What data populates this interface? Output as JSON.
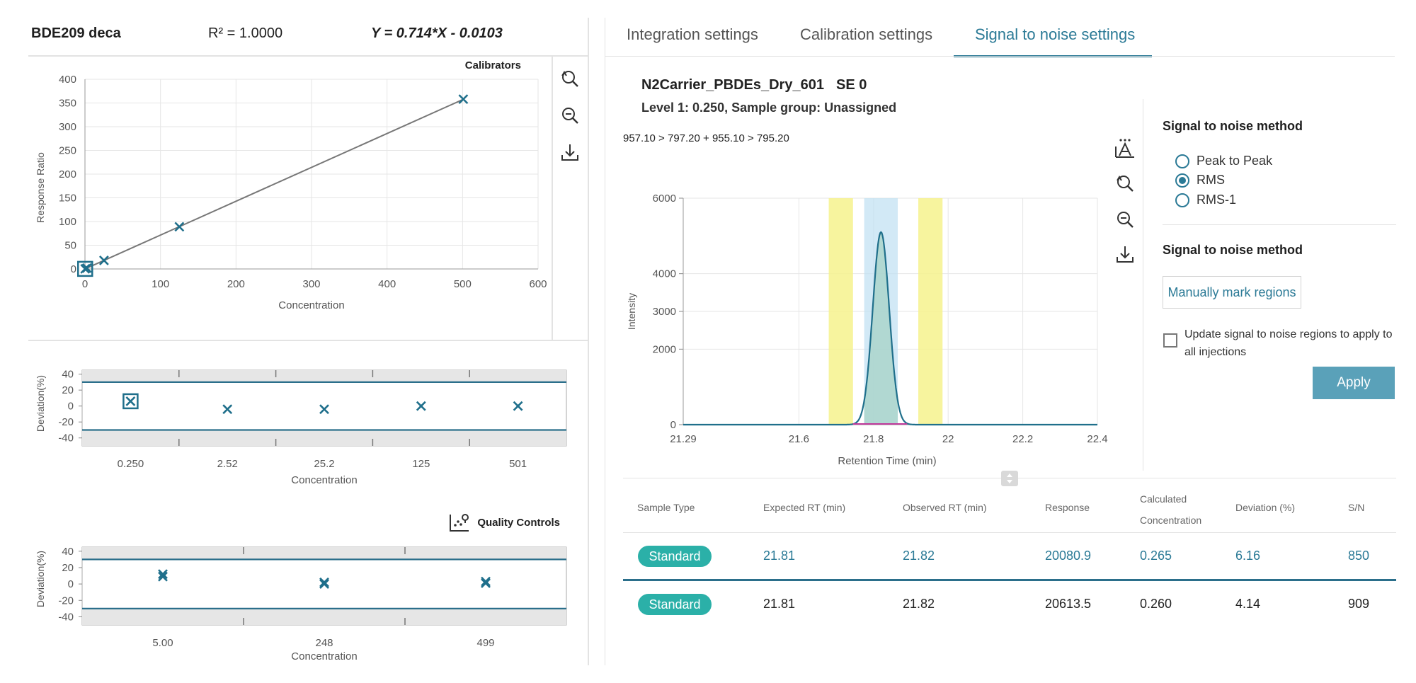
{
  "header": {
    "compound": "BDE209 deca",
    "r_squared": "R² = 1.0000",
    "equation": "Y = 0.714*X - 0.0103"
  },
  "tabs": [
    {
      "label": "Integration settings",
      "active": false
    },
    {
      "label": "Calibration settings",
      "active": false
    },
    {
      "label": "Signal to noise settings",
      "active": true
    }
  ],
  "sample": {
    "name": "N2Carrier_PBDEs_Dry_601",
    "se": "SE 0",
    "level": "Level 1: 0.250, Sample group: Unassigned",
    "transition": "957.10 > 797.20 + 955.10 > 795.20"
  },
  "signal_to_noise": {
    "method_heading": "Signal to noise method",
    "options": [
      {
        "label": "Peak to Peak",
        "checked": false
      },
      {
        "label": "RMS",
        "checked": true
      },
      {
        "label": "RMS-1",
        "checked": false
      }
    ],
    "regions_heading": "Signal to noise method",
    "manual_button": "Manually mark regions",
    "apply_checkbox_label": "Update signal to noise regions to apply to all injections",
    "apply_checked": false,
    "apply_button": "Apply"
  },
  "icons": {
    "zoom_reset": "zoom-reset-icon",
    "zoom_out": "zoom-out-icon",
    "download": "download-icon",
    "peak_label": "peak-label-icon",
    "quality_controls": "scatter-plot-icon",
    "splitter": "splitter-handle-icon"
  },
  "colors": {
    "accent": "#2b7a96",
    "marker": "#1f6f8b",
    "pill": "#2bb0a8",
    "noise_region": "#f6f28d",
    "peak_region": "#bfe0f2",
    "apply": "#5aa1b9"
  },
  "table": {
    "headers": [
      "Sample Type",
      "Expected RT (min)",
      "Observed RT (min)",
      "Response",
      "Calculated Concentration",
      "Deviation (%)",
      "S/N"
    ],
    "rows": [
      {
        "type": "Standard",
        "expected_rt": "21.81",
        "observed_rt": "21.82",
        "response": "20080.9",
        "calc_conc": "0.265",
        "deviation": "6.16",
        "sn": "850",
        "selected": true
      },
      {
        "type": "Standard",
        "expected_rt": "21.81",
        "observed_rt": "21.82",
        "response": "20613.5",
        "calc_conc": "0.260",
        "deviation": "4.14",
        "sn": "909",
        "selected": false
      }
    ]
  },
  "chart_data": [
    {
      "type": "scatter",
      "title": "Calibrators",
      "xlabel": "Concentration",
      "ylabel": "Response Ratio",
      "xlim": [
        0,
        600
      ],
      "ylim": [
        0,
        400
      ],
      "xticks": [
        0,
        100,
        200,
        300,
        400,
        500,
        600
      ],
      "yticks": [
        0,
        50,
        100,
        150,
        200,
        250,
        300,
        350,
        400
      ],
      "grid": true,
      "points": [
        {
          "x": 0.25,
          "y": 0.17,
          "selected": true
        },
        {
          "x": 2.52,
          "y": 1.8
        },
        {
          "x": 25.2,
          "y": 18
        },
        {
          "x": 125,
          "y": 89
        },
        {
          "x": 501,
          "y": 358
        }
      ],
      "fit_line": {
        "slope": 0.714,
        "intercept": -0.0103
      }
    },
    {
      "type": "scatter",
      "title": "",
      "xlabel": "Concentration",
      "ylabel": "Deviation(%)",
      "categories": [
        "0.250",
        "2.52",
        "25.2",
        "125",
        "501"
      ],
      "values": [
        6,
        -4,
        -4,
        0,
        0
      ],
      "selected_index": 0,
      "ylim": [
        -50,
        45
      ],
      "yticks": [
        40,
        20,
        0,
        -20,
        -40
      ],
      "limits": [
        30,
        -30
      ]
    },
    {
      "type": "scatter",
      "title": "Quality Controls",
      "xlabel": "Concentration",
      "ylabel": "Deviation(%)",
      "categories": [
        "5.00",
        "248",
        "499"
      ],
      "series": [
        {
          "values": [
            9,
            0,
            1
          ]
        },
        {
          "values": [
            12,
            2,
            3
          ]
        }
      ],
      "ylim": [
        -50,
        45
      ],
      "yticks": [
        40,
        20,
        0,
        -20,
        -40
      ],
      "limits": [
        30,
        -30
      ]
    },
    {
      "type": "line",
      "title": "957.10 > 797.20 + 955.10 > 795.20",
      "xlabel": "Retention Time (min)",
      "ylabel": "Intensity",
      "xlim": [
        21.29,
        22.4
      ],
      "ylim": [
        0,
        6000
      ],
      "xticks": [
        "21.29",
        "21.6",
        "21.8",
        "22",
        "22.2",
        "22.4"
      ],
      "yticks": [
        0,
        2000,
        3000,
        4000,
        6000
      ],
      "peak": {
        "apex_rt": 21.82,
        "height": 5100,
        "sigma": 0.022
      },
      "noise_regions": [
        [
          21.68,
          21.745
        ],
        [
          21.92,
          21.985
        ]
      ],
      "integration_region": [
        21.775,
        21.865
      ]
    }
  ]
}
